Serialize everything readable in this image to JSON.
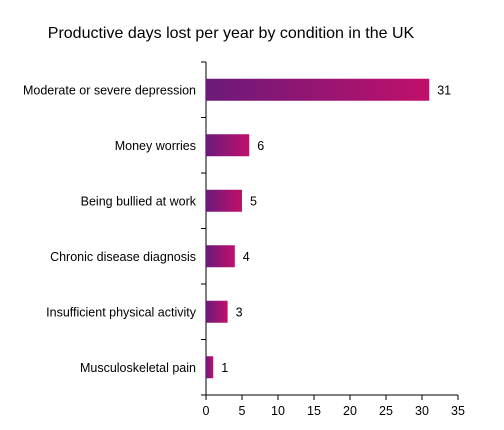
{
  "chart_data": {
    "type": "bar",
    "orientation": "horizontal",
    "title": "Productive days lost per year by condition in the UK",
    "xlabel": "",
    "ylabel": "",
    "categories": [
      "Moderate or severe depression",
      "Money worries",
      "Being bullied at work",
      "Chronic disease diagnosis",
      "Insufficient physical activity",
      "Musculoskeletal pain"
    ],
    "values": [
      31,
      6,
      5,
      4,
      3,
      1
    ],
    "xlim": [
      0,
      35
    ],
    "xticks": [
      0,
      5,
      10,
      15,
      20,
      25,
      30,
      35
    ],
    "grid": false,
    "legend": "none",
    "data_labels": true,
    "colors": {
      "bar_start": "#6b1a7a",
      "bar_end": "#c0106a",
      "axis": "#000000"
    }
  }
}
